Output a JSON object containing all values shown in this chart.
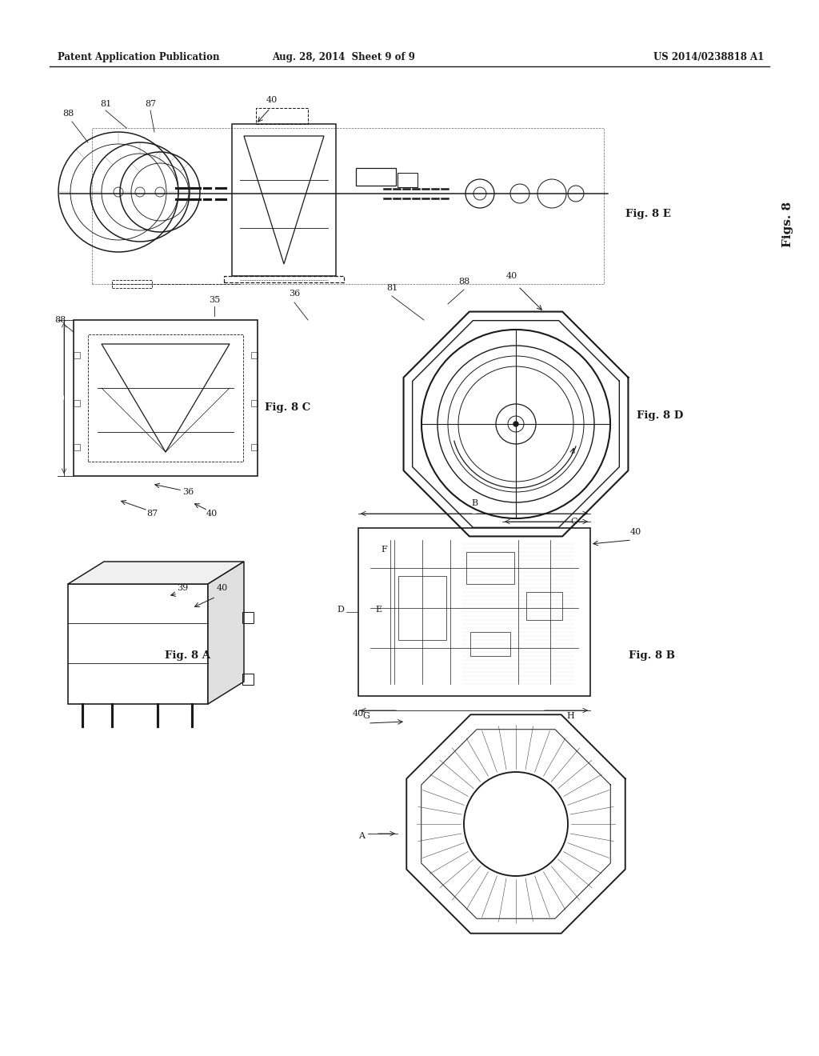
{
  "header_left": "Patent Application Publication",
  "header_center": "Aug. 28, 2014  Sheet 9 of 9",
  "header_right": "US 2014/0238818 A1",
  "fig8_label": "Figs. 8",
  "fig8e_label": "Fig. 8 E",
  "fig8d_label": "Fig. 8 D",
  "fig8c_label": "Fig. 8 C",
  "fig8b_label": "Fig. 8 B",
  "fig8a_label": "Fig. 8 A",
  "bg_color": "#ffffff",
  "line_color": "#1a1a1a",
  "gray": "#888888",
  "light_gray": "#cccccc"
}
